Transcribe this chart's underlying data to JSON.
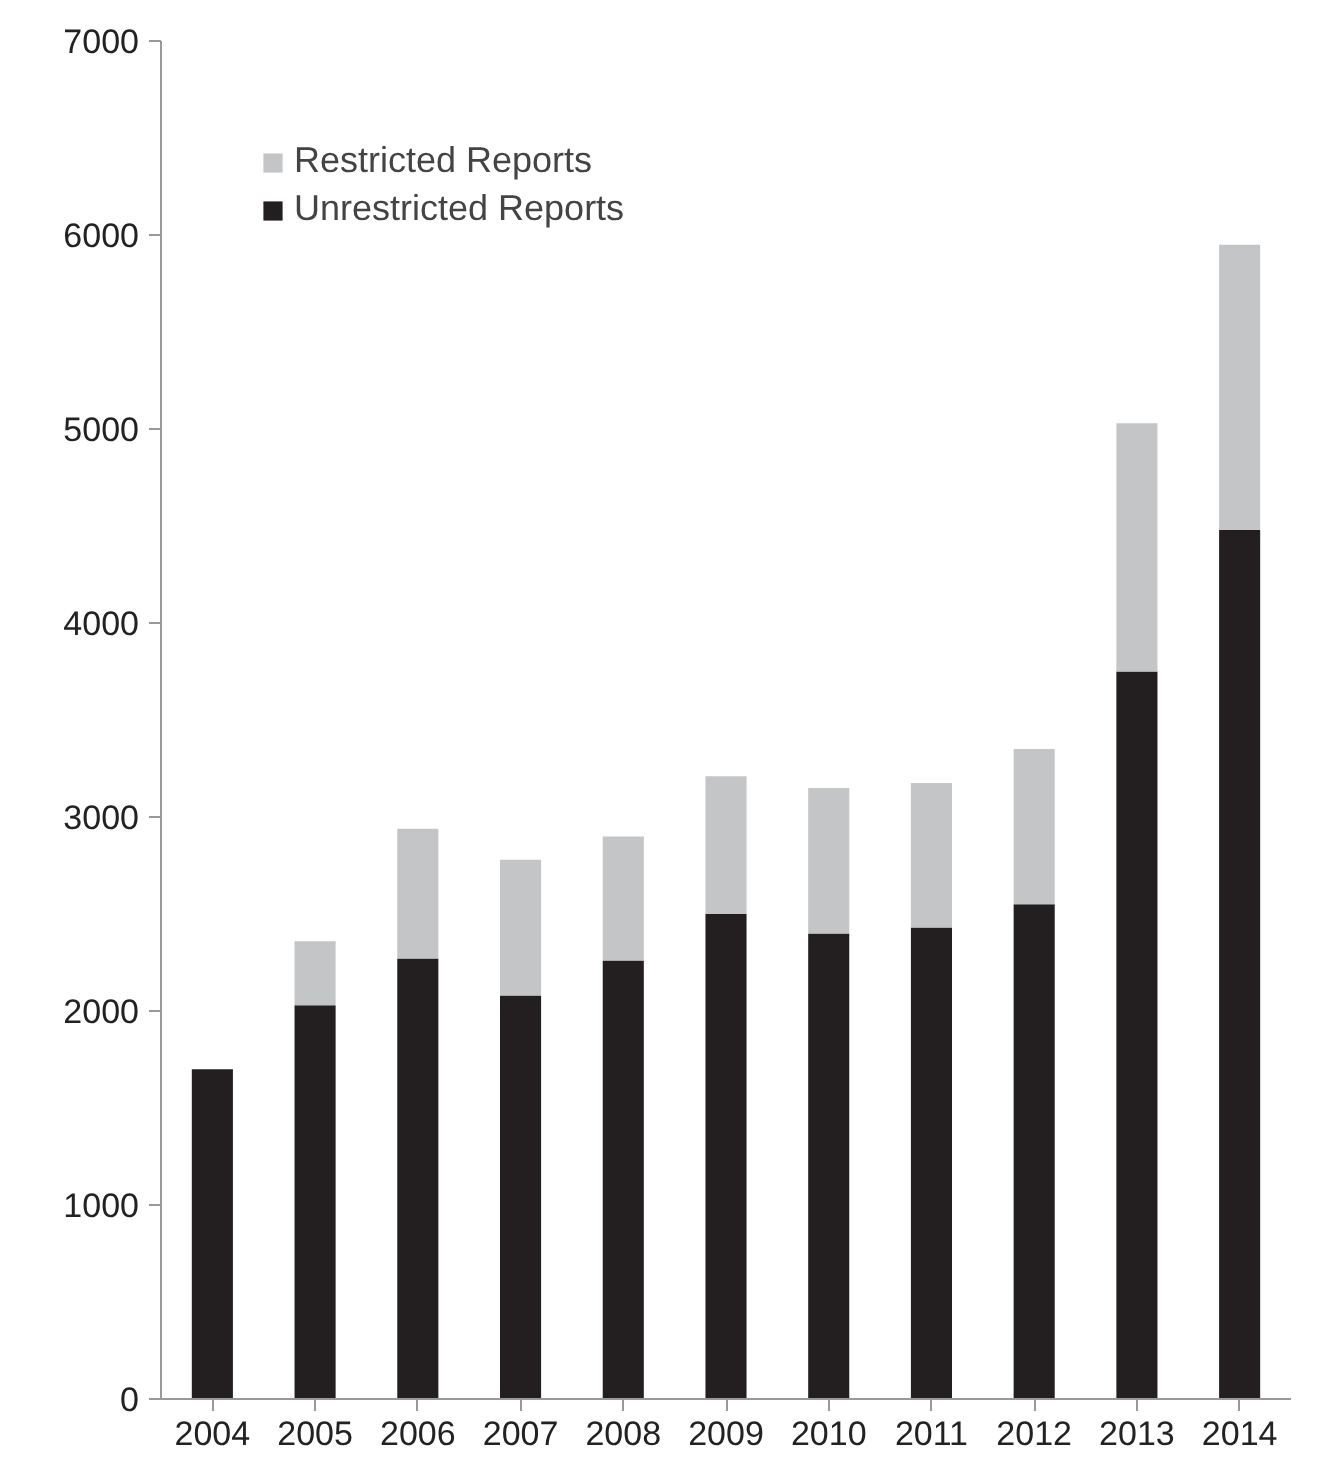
{
  "chart_data": {
    "type": "bar",
    "stacked": true,
    "categories": [
      "2004",
      "2005",
      "2006",
      "2007",
      "2008",
      "2009",
      "2010",
      "2011",
      "2012",
      "2013",
      "2014"
    ],
    "series": [
      {
        "name": "Unrestricted Reports",
        "color": "#231f20",
        "values": [
          1700,
          2030,
          2270,
          2080,
          2260,
          2500,
          2400,
          2430,
          2550,
          3750,
          4480
        ]
      },
      {
        "name": "Restricted Reports",
        "color": "#c4c5c7",
        "values": [
          0,
          330,
          670,
          700,
          640,
          710,
          750,
          745,
          800,
          1280,
          1470
        ]
      }
    ],
    "ylim": [
      0,
      7000
    ],
    "yticks": [
      0,
      1000,
      2000,
      3000,
      4000,
      5000,
      6000,
      7000
    ],
    "grid": false,
    "legend": "top left"
  }
}
